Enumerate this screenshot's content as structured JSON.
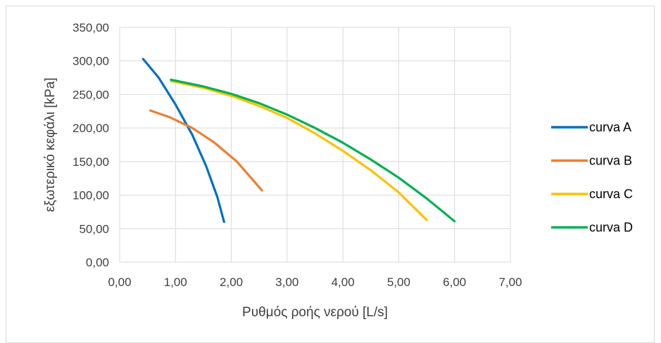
{
  "chart_data": {
    "type": "line",
    "title": "",
    "xlabel": "Ρυθμός ροής νερού [L/s]",
    "ylabel": "εξωτερικό κεφάλι  [kPa]",
    "xlim": [
      0,
      7
    ],
    "ylim": [
      0,
      350
    ],
    "x_ticks": [
      "0,00",
      "1,00",
      "2,00",
      "3,00",
      "4,00",
      "5,00",
      "6,00",
      "7,00"
    ],
    "y_ticks": [
      "0,00",
      "50,00",
      "100,00",
      "150,00",
      "200,00",
      "250,00",
      "300,00",
      "350,00"
    ],
    "grid": "major",
    "legend_position": "right",
    "series": [
      {
        "name": "curva A",
        "color": "#0070c0",
        "points": [
          [
            0.42,
            303
          ],
          [
            0.7,
            275
          ],
          [
            1.0,
            235
          ],
          [
            1.3,
            190
          ],
          [
            1.55,
            143
          ],
          [
            1.75,
            97
          ],
          [
            1.87,
            60
          ]
        ]
      },
      {
        "name": "curva B",
        "color": "#ed7d31",
        "points": [
          [
            0.55,
            226
          ],
          [
            0.9,
            216
          ],
          [
            1.3,
            200
          ],
          [
            1.7,
            178
          ],
          [
            2.1,
            150
          ],
          [
            2.55,
            107
          ]
        ]
      },
      {
        "name": "curva C",
        "color": "#ffc000",
        "points": [
          [
            0.92,
            270
          ],
          [
            1.5,
            260
          ],
          [
            2.0,
            248
          ],
          [
            2.5,
            233
          ],
          [
            3.0,
            215
          ],
          [
            3.5,
            192
          ],
          [
            4.0,
            166
          ],
          [
            4.5,
            137
          ],
          [
            5.0,
            104
          ],
          [
            5.5,
            63
          ]
        ]
      },
      {
        "name": "curva D",
        "color": "#00b050",
        "points": [
          [
            0.92,
            272
          ],
          [
            1.5,
            262
          ],
          [
            2.0,
            251
          ],
          [
            2.5,
            237
          ],
          [
            3.0,
            220
          ],
          [
            3.5,
            200
          ],
          [
            4.0,
            178
          ],
          [
            4.5,
            153
          ],
          [
            5.0,
            126
          ],
          [
            5.5,
            95
          ],
          [
            6.0,
            61
          ]
        ]
      }
    ]
  }
}
